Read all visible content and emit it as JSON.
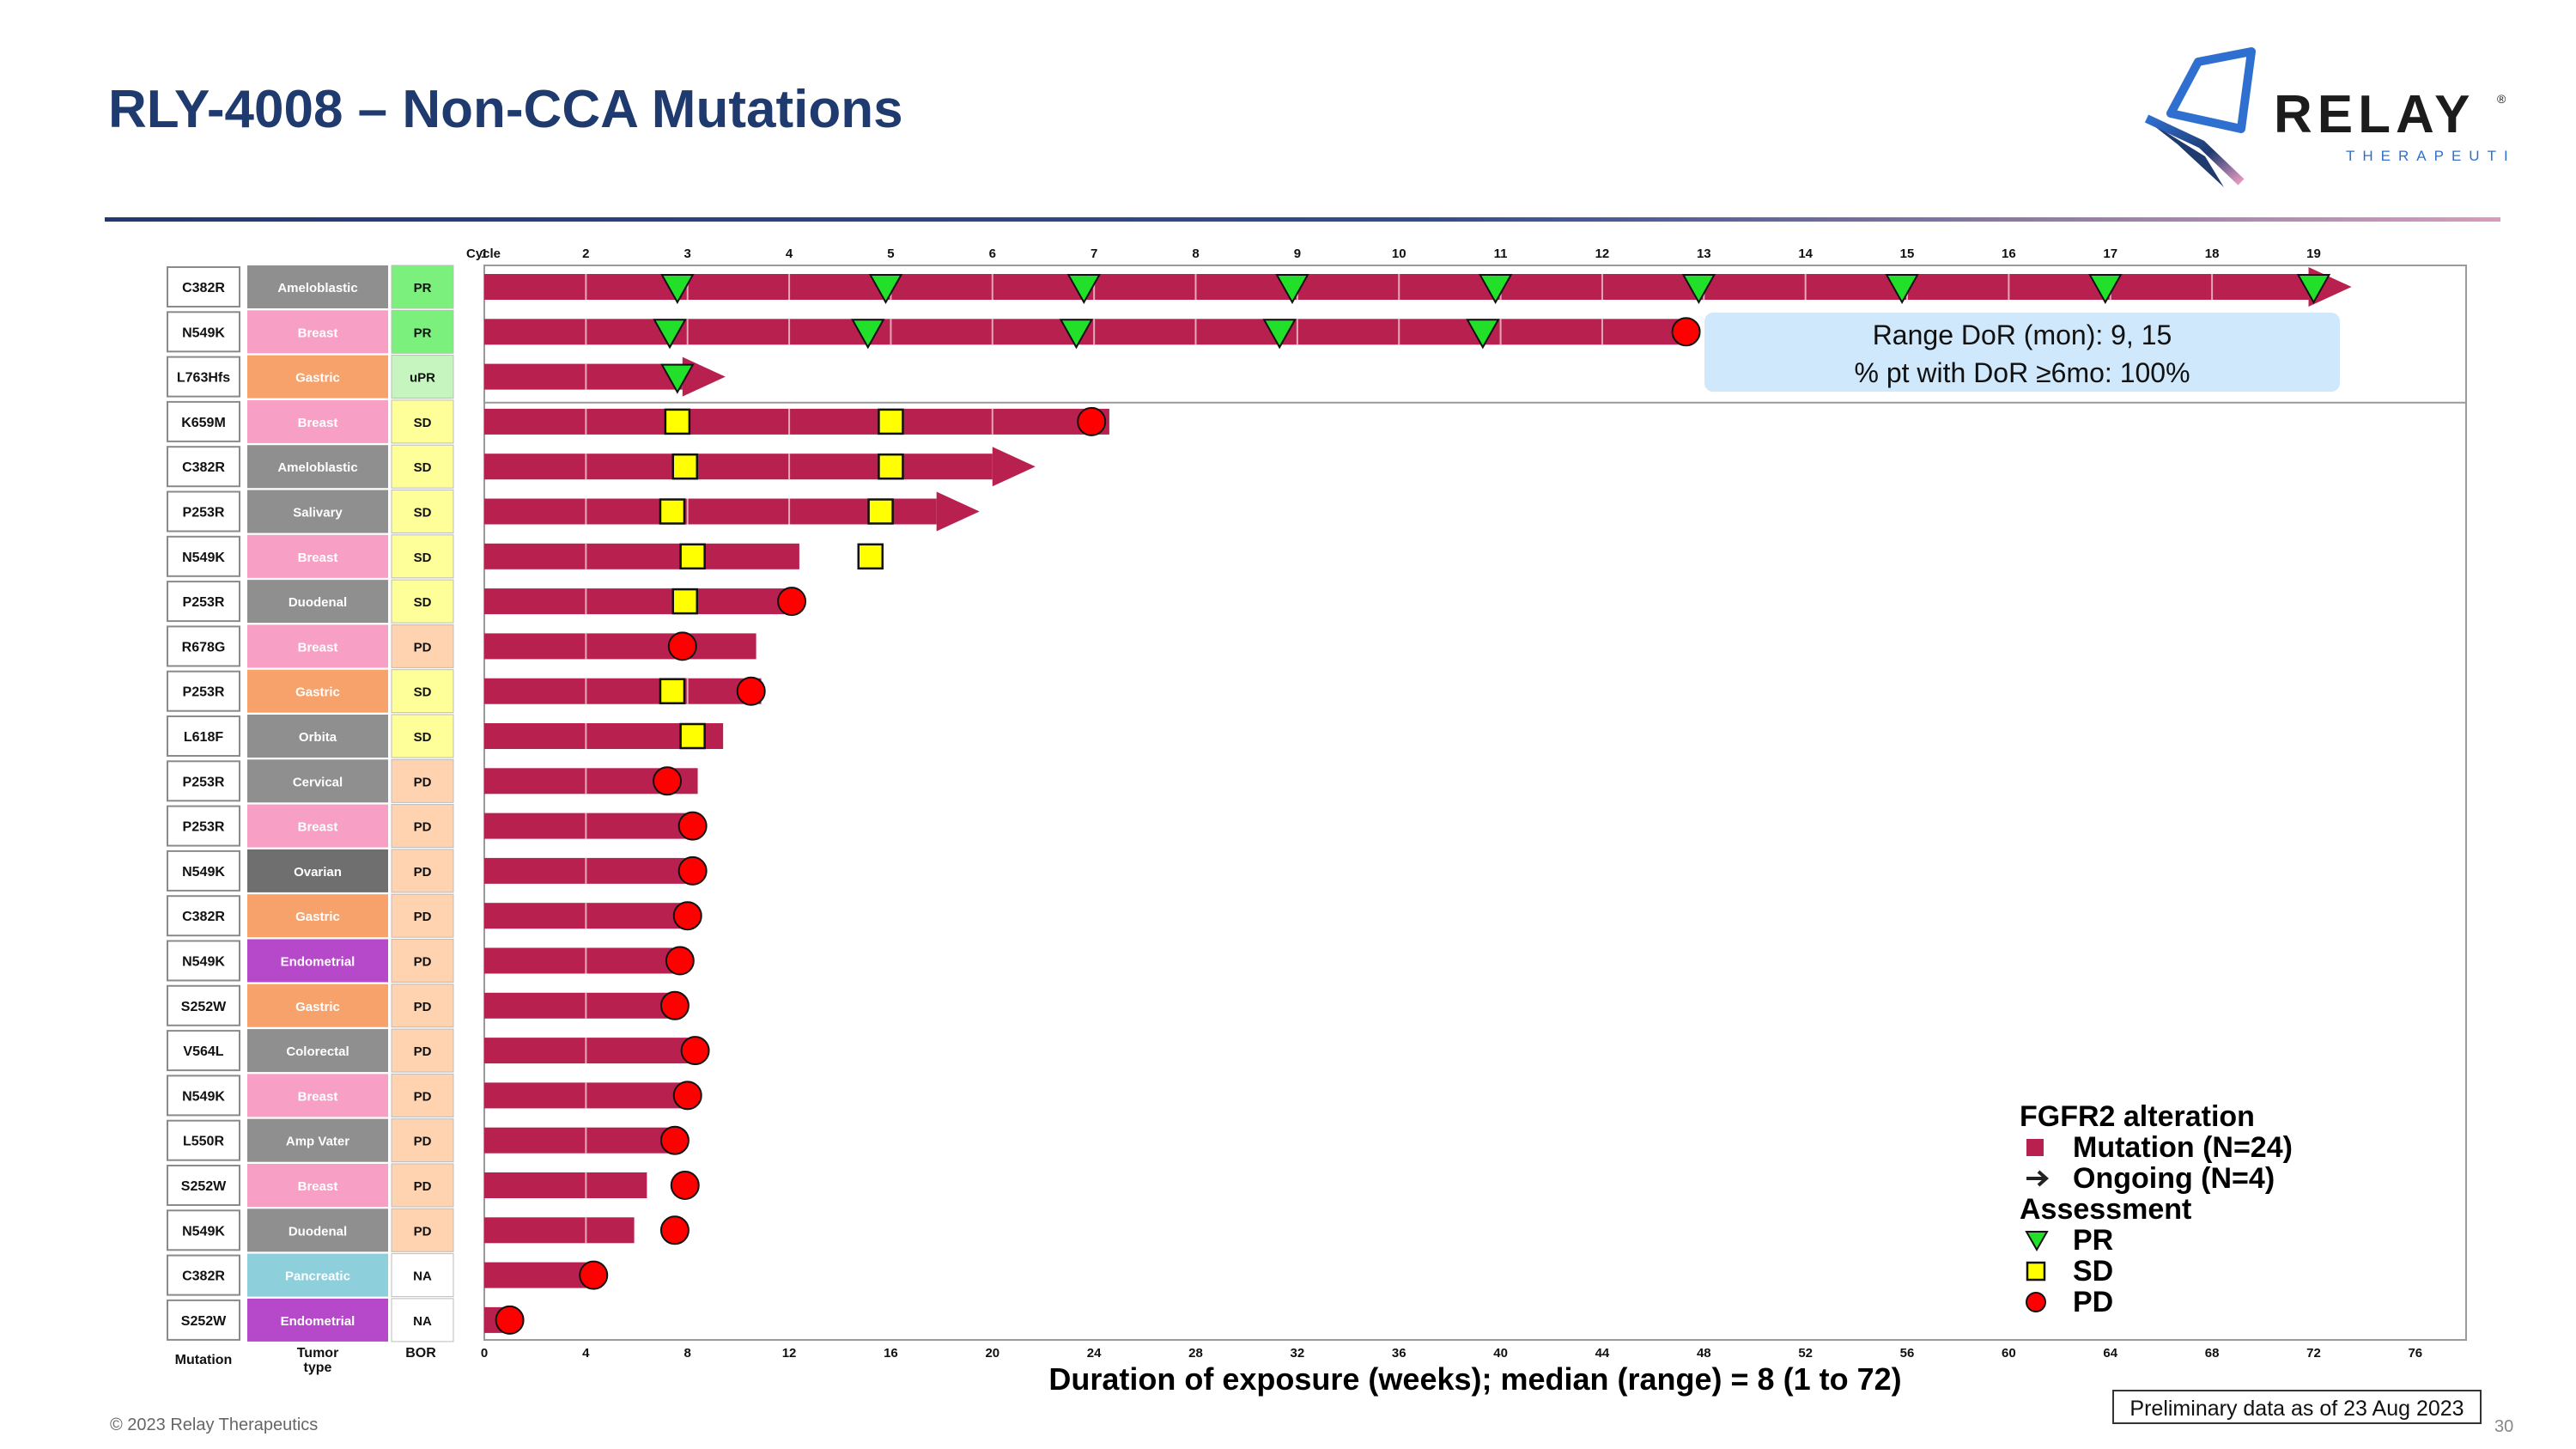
{
  "header": {
    "title": "RLY-4008 – Non-CCA Mutations"
  },
  "logo": {
    "name": "RELAY",
    "sub": "THERAPEUTICS",
    "reg": "®"
  },
  "footer": {
    "copyright": "© 2023 Relay Therapeutics",
    "page": "30",
    "prelim": "Preliminary data as of 23 Aug 2023"
  },
  "dor_box": {
    "line1": "Range DoR (mon): 9, 15",
    "line2": "% pt with DoR ≥6mo: 100%"
  },
  "legend": {
    "title1": "FGFR2 alteration",
    "mutation": "Mutation (N=24)",
    "ongoing": "Ongoing (N=4)",
    "title2": "Assessment",
    "pr": "PR",
    "sd": "SD",
    "pd": "PD"
  },
  "colors": {
    "bar": "#b8214f",
    "pr": "#22e02a",
    "sd": "#ffff00",
    "pd": "#ff0000",
    "bor_PR": "#7cf07c",
    "bor_uPR": "#c6f5c0",
    "bor_SD": "#ffff99",
    "bor_PD": "#ffd3b0",
    "bor_NA": "#ffffff",
    "tumor_Ameloblastic": "#8f8f8f",
    "tumor_Breast": "#f79fc4",
    "tumor_Gastric": "#f7a26a",
    "tumor_Salivary": "#8f8f8f",
    "tumor_Duodenal": "#8f8f8f",
    "tumor_Orbita": "#8f8f8f",
    "tumor_Cervical": "#8f8f8f",
    "tumor_Ovarian": "#6f6f6f",
    "tumor_Endometrial": "#b649c9",
    "tumor_Colorectal": "#8f8f8f",
    "tumor_Amp Vater": "#8f8f8f",
    "tumor_Pancreatic": "#8ecfdc",
    "title": "#1f3a6e"
  },
  "chart_data": {
    "type": "swimmer",
    "xlabel": "Duration of exposure (weeks); median (range) = 8 (1 to 72)",
    "xlim": [
      0,
      78
    ],
    "xticks": [
      0,
      4,
      8,
      12,
      16,
      20,
      24,
      28,
      32,
      36,
      40,
      44,
      48,
      52,
      56,
      60,
      64,
      68,
      72,
      76
    ],
    "cycle_label": "Cycle",
    "cycles": [
      1,
      2,
      3,
      4,
      5,
      6,
      7,
      8,
      9,
      10,
      11,
      12,
      13,
      14,
      15,
      16,
      17,
      18,
      19
    ],
    "column_headers": {
      "mutation": "Mutation",
      "tumor": "Tumor type",
      "bor": "BOR"
    },
    "rows": [
      {
        "mutation": "C382R",
        "tumor": "Ameloblastic",
        "bor": "PR",
        "duration": 71.8,
        "ongoing": true,
        "pr": [
          7.6,
          15.8,
          23.6,
          31.8,
          39.8,
          47.8,
          55.8,
          63.8,
          72.0
        ],
        "sd": [],
        "pd": []
      },
      {
        "mutation": "N549K",
        "tumor": "Breast",
        "bor": "PR",
        "duration": 47.5,
        "ongoing": false,
        "pr": [
          7.3,
          15.1,
          23.3,
          31.3,
          39.3
        ],
        "sd": [],
        "pd": [
          47.3
        ]
      },
      {
        "mutation": "L763Hfs",
        "tumor": "Gastric",
        "bor": "uPR",
        "duration": 7.8,
        "ongoing": true,
        "pr": [
          7.6
        ],
        "sd": [],
        "pd": []
      },
      {
        "mutation": "K659M",
        "tumor": "Breast",
        "bor": "SD",
        "duration": 24.6,
        "ongoing": false,
        "pr": [],
        "sd": [
          7.6,
          16.0
        ],
        "pd": [
          23.9
        ]
      },
      {
        "mutation": "C382R",
        "tumor": "Ameloblastic",
        "bor": "SD",
        "duration": 20.0,
        "ongoing": true,
        "pr": [],
        "sd": [
          7.9,
          16.0
        ],
        "pd": []
      },
      {
        "mutation": "P253R",
        "tumor": "Salivary",
        "bor": "SD",
        "duration": 17.8,
        "ongoing": true,
        "pr": [],
        "sd": [
          7.4,
          15.6
        ],
        "pd": []
      },
      {
        "mutation": "N549K",
        "tumor": "Breast",
        "bor": "SD",
        "duration": 12.4,
        "ongoing": false,
        "pr": [],
        "sd": [
          8.2,
          15.2
        ],
        "pd": []
      },
      {
        "mutation": "P253R",
        "tumor": "Duodenal",
        "bor": "SD",
        "duration": 12.1,
        "ongoing": false,
        "pr": [],
        "sd": [
          7.9
        ],
        "pd": [
          12.1
        ]
      },
      {
        "mutation": "R678G",
        "tumor": "Breast",
        "bor": "PD",
        "duration": 10.7,
        "ongoing": false,
        "pr": [],
        "sd": [],
        "pd": [
          7.8
        ]
      },
      {
        "mutation": "P253R",
        "tumor": "Gastric",
        "bor": "SD",
        "duration": 10.9,
        "ongoing": false,
        "pr": [],
        "sd": [
          7.4
        ],
        "pd": [
          10.5
        ]
      },
      {
        "mutation": "L618F",
        "tumor": "Orbita",
        "bor": "SD",
        "duration": 9.4,
        "ongoing": false,
        "pr": [],
        "sd": [
          8.2
        ],
        "pd": []
      },
      {
        "mutation": "P253R",
        "tumor": "Cervical",
        "bor": "PD",
        "duration": 8.4,
        "ongoing": false,
        "pr": [],
        "sd": [],
        "pd": [
          7.2
        ]
      },
      {
        "mutation": "P253R",
        "tumor": "Breast",
        "bor": "PD",
        "duration": 8.2,
        "ongoing": false,
        "pr": [],
        "sd": [],
        "pd": [
          8.2
        ]
      },
      {
        "mutation": "N549K",
        "tumor": "Ovarian",
        "bor": "PD",
        "duration": 8.2,
        "ongoing": false,
        "pr": [],
        "sd": [],
        "pd": [
          8.2
        ]
      },
      {
        "mutation": "C382R",
        "tumor": "Gastric",
        "bor": "PD",
        "duration": 7.9,
        "ongoing": false,
        "pr": [],
        "sd": [],
        "pd": [
          8.0
        ]
      },
      {
        "mutation": "N549K",
        "tumor": "Endometrial",
        "bor": "PD",
        "duration": 7.7,
        "ongoing": false,
        "pr": [],
        "sd": [],
        "pd": [
          7.7
        ]
      },
      {
        "mutation": "S252W",
        "tumor": "Gastric",
        "bor": "PD",
        "duration": 7.5,
        "ongoing": false,
        "pr": [],
        "sd": [],
        "pd": [
          7.5
        ]
      },
      {
        "mutation": "V564L",
        "tumor": "Colorectal",
        "bor": "PD",
        "duration": 8.3,
        "ongoing": false,
        "pr": [],
        "sd": [],
        "pd": [
          8.3
        ]
      },
      {
        "mutation": "N549K",
        "tumor": "Breast",
        "bor": "PD",
        "duration": 7.9,
        "ongoing": false,
        "pr": [],
        "sd": [],
        "pd": [
          8.0
        ]
      },
      {
        "mutation": "L550R",
        "tumor": "Amp Vater",
        "bor": "PD",
        "duration": 7.4,
        "ongoing": false,
        "pr": [],
        "sd": [],
        "pd": [
          7.5
        ]
      },
      {
        "mutation": "S252W",
        "tumor": "Breast",
        "bor": "PD",
        "duration": 6.4,
        "ongoing": false,
        "pr": [],
        "sd": [],
        "pd": [
          7.9
        ]
      },
      {
        "mutation": "N549K",
        "tumor": "Duodenal",
        "bor": "PD",
        "duration": 5.9,
        "ongoing": false,
        "pr": [],
        "sd": [],
        "pd": [
          7.5
        ]
      },
      {
        "mutation": "C382R",
        "tumor": "Pancreatic",
        "bor": "NA",
        "duration": 4.3,
        "ongoing": false,
        "pr": [],
        "sd": [],
        "pd": [
          4.3
        ]
      },
      {
        "mutation": "S252W",
        "tumor": "Endometrial",
        "bor": "NA",
        "duration": 1.0,
        "ongoing": false,
        "pr": [],
        "sd": [],
        "pd": [
          1.0
        ]
      }
    ]
  }
}
